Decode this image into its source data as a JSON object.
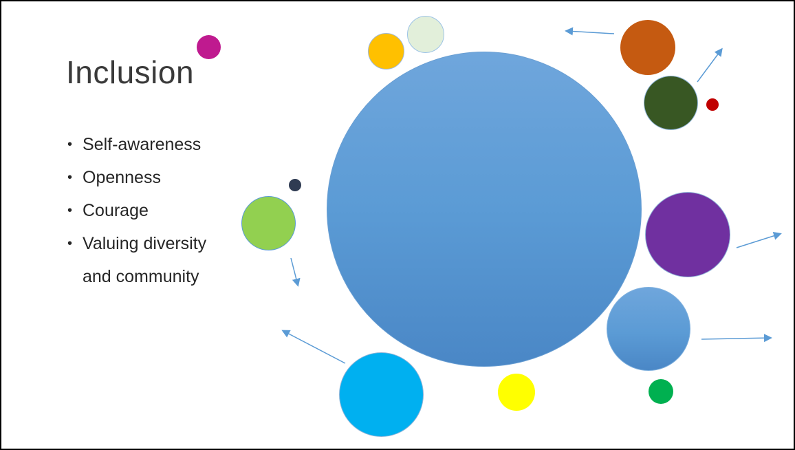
{
  "slide": {
    "title": "Inclusion",
    "bullets": [
      {
        "lines": [
          "Self-awareness"
        ]
      },
      {
        "lines": [
          "Openness"
        ]
      },
      {
        "lines": [
          "Courage"
        ]
      },
      {
        "lines": [
          "Valuing diversity",
          "and community"
        ]
      }
    ],
    "bullet_glyph": "•"
  },
  "colors": {
    "central": "#5b9bd5",
    "magenta": "#bf1a8f",
    "orange_yellow": "#ffc000",
    "pale_green": "#e2efda",
    "burnt_orange": "#c55a11",
    "dark_green": "#385723",
    "red": "#c00000",
    "purple": "#7030a0",
    "light_blue": "#5b9bd5",
    "green": "#00b050",
    "yellow": "#ffff00",
    "cyan": "#00b0f0",
    "lime": "#92d050",
    "navy": "#2f3b52",
    "arrow": "#5b9bd5"
  }
}
